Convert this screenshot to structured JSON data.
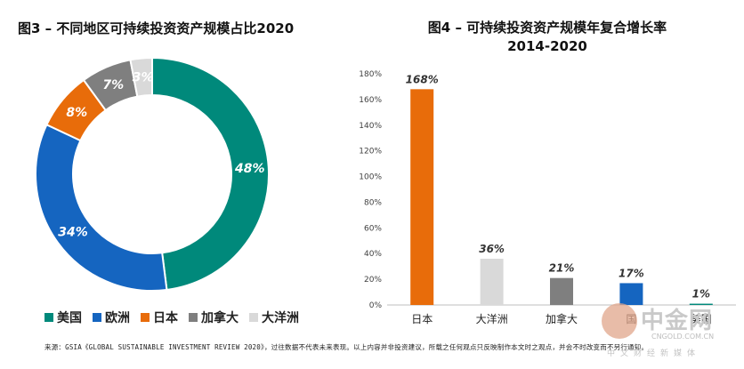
{
  "chart_data": [
    {
      "type": "pie",
      "title": "图3 – 不同地区可持续投资资产规模占比2020",
      "categories": [
        "美国",
        "欧洲",
        "日本",
        "加拿大",
        "大洋洲"
      ],
      "values": [
        48,
        34,
        8,
        7,
        3
      ],
      "value_labels": [
        "48%",
        "34%",
        "8%",
        "7%",
        "3%"
      ],
      "colors": [
        "#00897b",
        "#1565c0",
        "#e86c0a",
        "#7f7f7f",
        "#d9d9d9"
      ],
      "legend": "bottom",
      "style": "donut"
    },
    {
      "type": "bar",
      "title": "图4 – 可持续投资资产规模年复合增长率",
      "subtitle": "2014-2020",
      "categories": [
        "日本",
        "大洋洲",
        "加拿大",
        "欧洲",
        "美国"
      ],
      "category_labels_shown": [
        "日本",
        "大洋洲",
        "加拿大",
        "国",
        "美国"
      ],
      "values": [
        168,
        36,
        21,
        17,
        1
      ],
      "value_labels": [
        "168%",
        "36%",
        "21%",
        "17%",
        "1%"
      ],
      "colors": [
        "#e86c0a",
        "#d9d9d9",
        "#7f7f7f",
        "#1565c0",
        "#00897b"
      ],
      "ylim": [
        0,
        180
      ],
      "yticks": [
        0,
        20,
        40,
        60,
        80,
        100,
        120,
        140,
        160,
        180
      ],
      "ytick_labels": [
        "0%",
        "20%",
        "40%",
        "60%",
        "80%",
        "100%",
        "120%",
        "140%",
        "160%",
        "180%"
      ],
      "grid": false
    }
  ],
  "footnote": "来源：GSIA《GLOBAL SUSTAINABLE INVESTMENT REVIEW 2020》，过往数据不代表未来表现。以上内容并非投资建议，所载之任何观点只反映制作本文时之观点，并会不时改变而不另行通知。",
  "watermark": {
    "brand": "中金网",
    "url": "CNGOLD.COM.CN",
    "tagline": "中文财经新媒体",
    "icon": "coin-logo-icon"
  }
}
